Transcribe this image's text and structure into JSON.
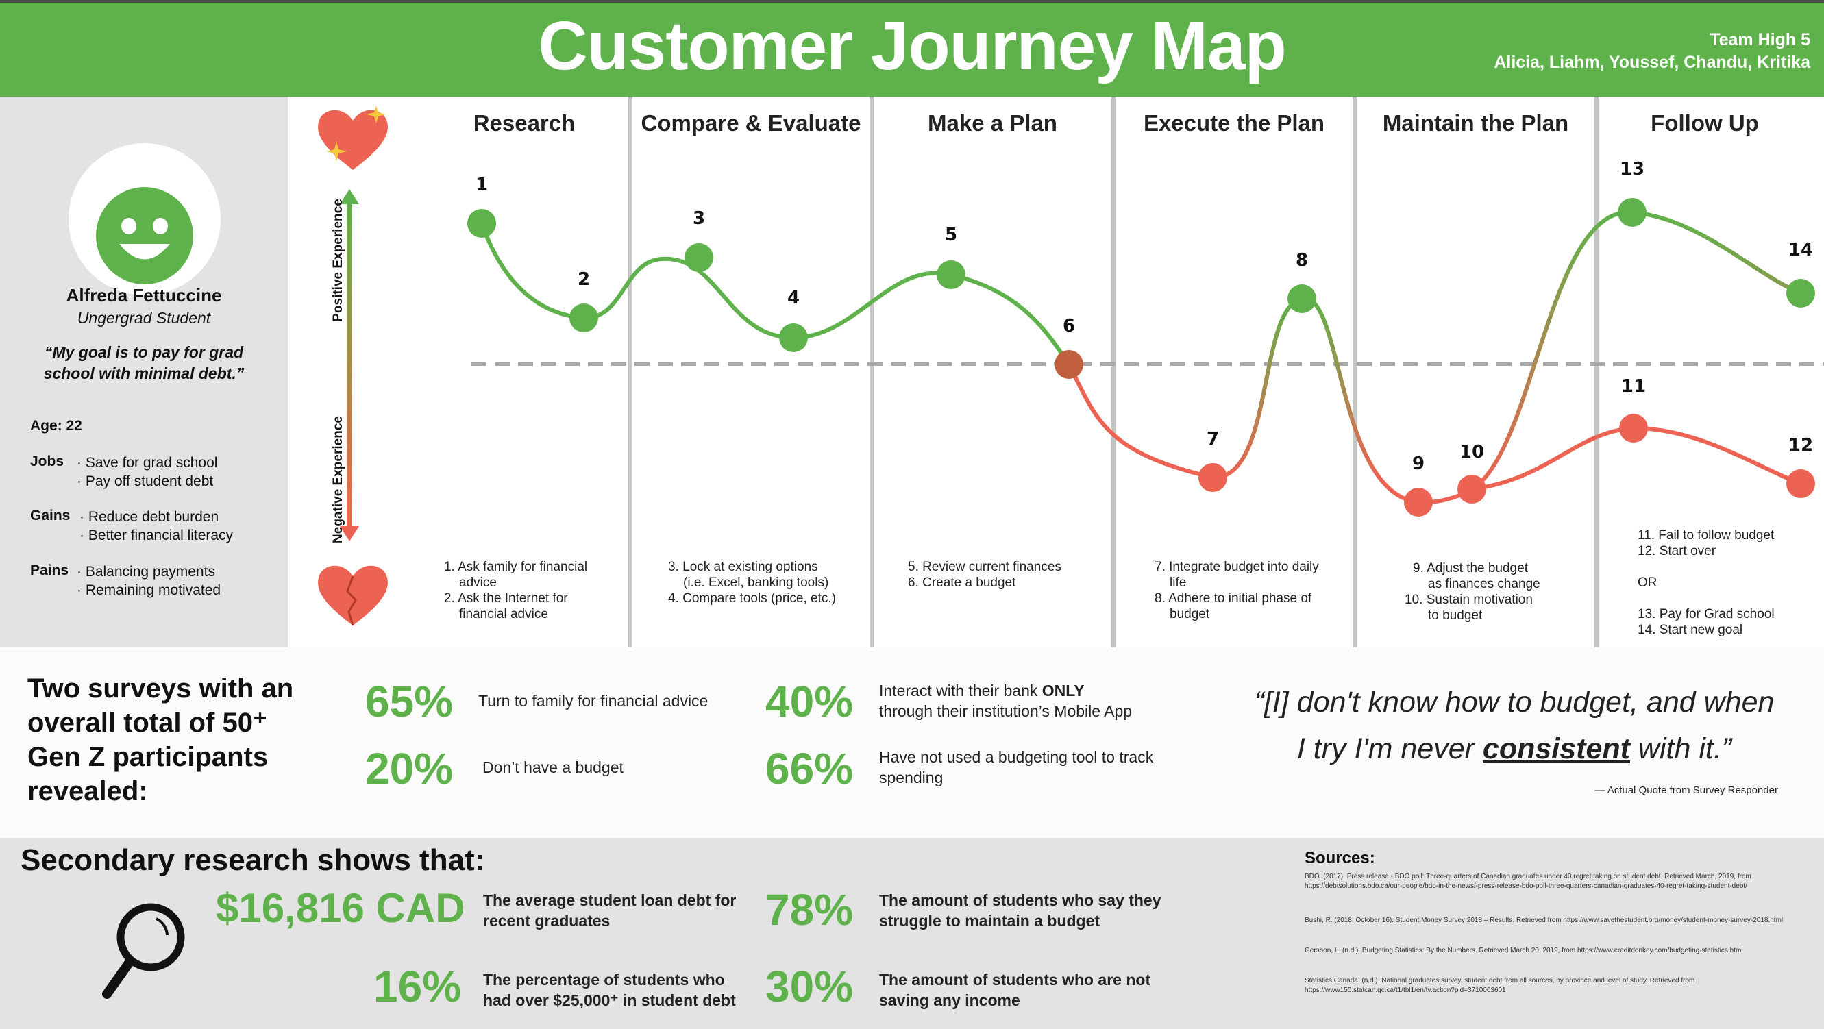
{
  "header": {
    "title": "Customer Journey Map",
    "team_line1": "Team High 5",
    "team_line2": "Alicia, Liahm, Youssef, Chandu, Kritika",
    "bg_color": "#5fb24b"
  },
  "persona": {
    "name": "Alfreda Fettuccine",
    "role": "Ungergrad Student",
    "goal": "“My goal is to pay for grad school with minimal debt.”",
    "age_label": "Age: 22",
    "jobs_label": "Jobs",
    "jobs": [
      "· Save for grad school",
      "· Pay off student debt"
    ],
    "gains_label": "Gains",
    "gains": [
      "· Reduce debt burden",
      "· Better financial literacy"
    ],
    "pains_label": "Pains",
    "pains": [
      "· Balancing payments",
      "· Remaining motivated"
    ],
    "avatar_icon": "smiley-face-icon"
  },
  "axis": {
    "positive": "Positive Experience",
    "negative": "Negative Experience",
    "positive_icon": "sparkling-heart-icon",
    "negative_icon": "broken-heart-icon"
  },
  "stages": [
    {
      "label": "Research",
      "desc": [
        "1. Ask family for financial",
        "advice",
        "2. Ask the Internet for",
        "financial advice"
      ]
    },
    {
      "label": "Compare & Evaluate",
      "desc": [
        "3. Lock at existing options",
        "(i.e. Excel, banking tools)",
        "4. Compare tools (price, etc.)"
      ]
    },
    {
      "label": "Make a Plan",
      "desc": [
        "5. Review current finances",
        "6. Create a budget"
      ]
    },
    {
      "label": "Execute the Plan",
      "desc": [
        "7. Integrate budget into daily",
        "life",
        "8. Adhere to initial phase of",
        "budget"
      ]
    },
    {
      "label": "Maintain the Plan",
      "desc": [
        "9. Adjust the budget",
        "as finances change",
        "10. Sustain motivation",
        "to budget"
      ]
    },
    {
      "label": "Follow Up",
      "desc": [
        "11. Fail to follow budget",
        "12. Start over",
        "",
        "OR",
        "",
        "13. Pay for Grad school",
        "14. Start new goal"
      ]
    }
  ],
  "points": [
    "1",
    "2",
    "3",
    "4",
    "5",
    "6",
    "7",
    "8",
    "9",
    "10",
    "11",
    "12",
    "13",
    "14"
  ],
  "colors": {
    "positive": "#5fb24b",
    "negative": "#ec6353",
    "neutral_line": "#aaaaaa"
  },
  "survey": {
    "heading": [
      "Two surveys with an",
      "overall total of 50⁺",
      "Gen Z participants",
      "revealed:"
    ],
    "stats": [
      {
        "pct": "65%",
        "text": "Turn to family for financial advice"
      },
      {
        "pct": "20%",
        "text": "Don’t have a budget"
      },
      {
        "pct": "40%",
        "text_pre": "Interact with their bank ",
        "text_bold": "ONLY",
        "text_post": "through their institution’s Mobile App"
      },
      {
        "pct": "66%",
        "text": "Have not used a budgeting tool to track spending"
      }
    ],
    "quote_pre": "“[I] don't know how to budget, and when",
    "quote_mid": "I try I'm never ",
    "quote_bold": "consistent",
    "quote_post": " with it.”",
    "quote_attr": "— Actual Quote from Survey Responder"
  },
  "secondary": {
    "heading": "Secondary research shows that:",
    "icon": "magnifying-glass-icon",
    "stats": [
      {
        "pct": "$16,816 CAD",
        "text": "The average student loan debt for recent graduates"
      },
      {
        "pct": "16%",
        "text": "The percentage of students who had over $25,000⁺ in student debt"
      },
      {
        "pct": "78%",
        "text": "The amount of students who say they struggle to maintain a budget"
      },
      {
        "pct": "30%",
        "text": "The amount of students who are not saving any income"
      }
    ],
    "sources_label": "Sources:",
    "sources": [
      "BDO. (2017). Press release - BDO poll: Three-quarters of Canadian graduates under 40 regret taking on student debt. Retrieved March, 2019, from https://debtsolutions.bdo.ca/our-people/bdo-in-the-news/-press-release-bdo-poll-three-quarters-canadian-graduates-40-regret-taking-student-debt/",
      "Bushi, R. (2018, October 16). Student Money Survey 2018 – Results. Retrieved from https://www.savethestudent.org/money/student-money-survey-2018.html",
      "Gershon, L. (n.d.). Budgeting Statistics: By the Numbers. Retrieved March 20, 2019, from https://www.creditdonkey.com/budgeting-statistics.html",
      "Statistics Canada. (n.d.). National graduates survey, student debt from all sources, by province and level of study. Retrieved from https://www150.statcan.gc.ca/t1/tbl1/en/tv.action?pid=3710003601"
    ]
  }
}
